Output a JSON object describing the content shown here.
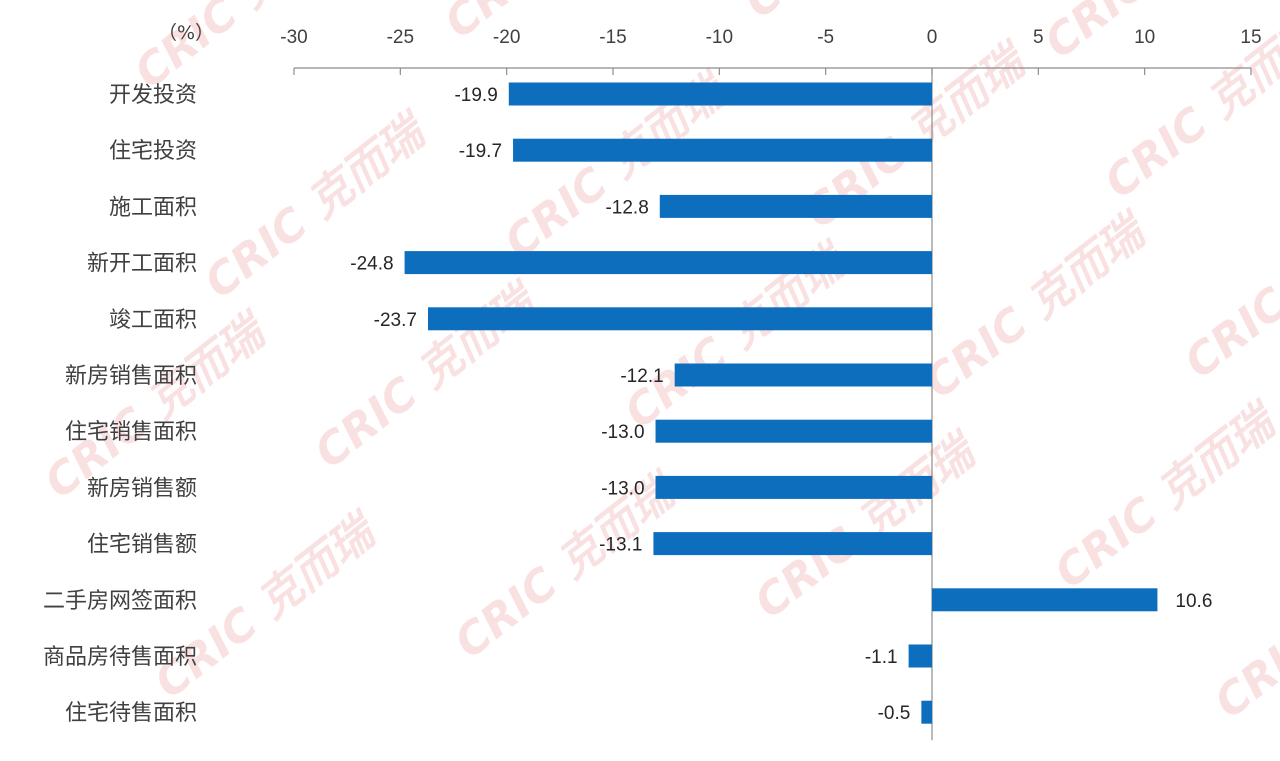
{
  "chart_data": {
    "type": "bar",
    "orientation": "horizontal",
    "unit_label": "（%）",
    "categories": [
      "开发投资",
      "住宅投资",
      "施工面积",
      "新开工面积",
      "竣工面积",
      "新房销售面积",
      "住宅销售面积",
      "新房销售额",
      "住宅销售额",
      "二手房网签面积",
      "商品房待售面积",
      "住宅待售面积"
    ],
    "values": [
      -19.9,
      -19.7,
      -12.8,
      -24.8,
      -23.7,
      -12.1,
      -13.0,
      -13.0,
      -13.1,
      10.6,
      -1.1,
      -0.5
    ],
    "value_labels": [
      "-19.9",
      "-19.7",
      "-12.8",
      "-24.8",
      "-23.7",
      "-12.1",
      "-13.0",
      "-13.0",
      "-13.1",
      "10.6",
      "-1.1",
      "-0.5"
    ],
    "xlim": [
      -30,
      15
    ],
    "x_ticks": [
      -30,
      -25,
      -20,
      -15,
      -10,
      -5,
      0,
      5,
      10,
      15
    ],
    "axis_position": "top",
    "grid": false,
    "bar_color": "#0E6EBE",
    "watermark": "CRIC 克而瑞"
  }
}
